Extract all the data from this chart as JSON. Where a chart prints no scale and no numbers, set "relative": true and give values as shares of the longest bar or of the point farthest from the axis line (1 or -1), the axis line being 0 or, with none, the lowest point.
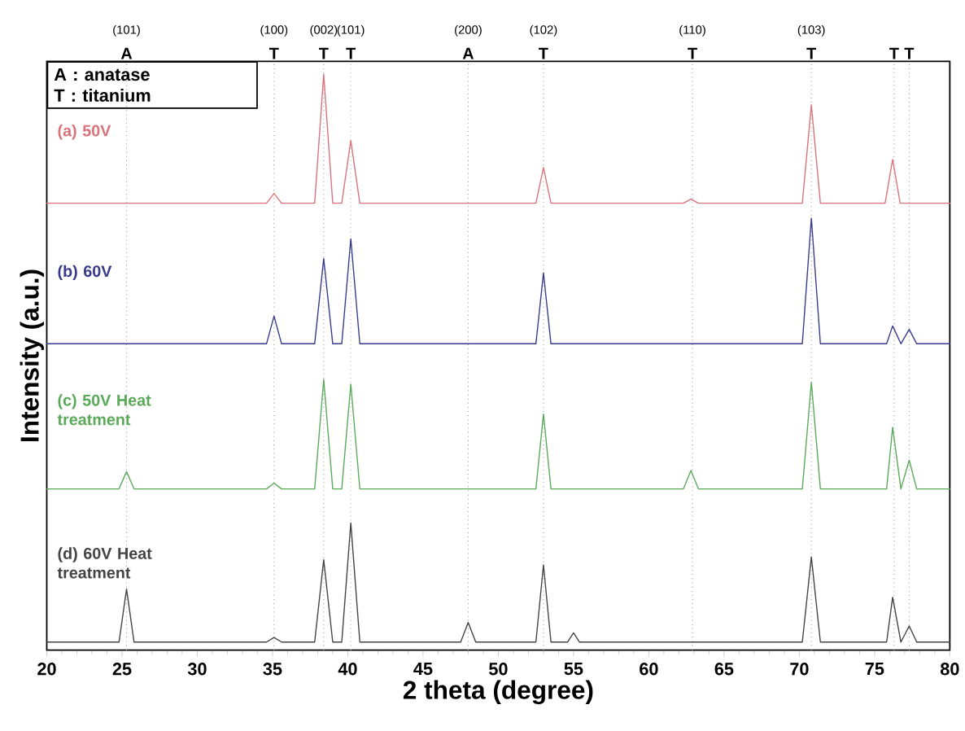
{
  "chart_data": {
    "type": "line",
    "relative": true,
    "xlabel": "2 theta (degree)",
    "ylabel": "Intensity (a.u.)",
    "xlim": [
      20,
      80
    ],
    "xticks": [
      20,
      25,
      30,
      35,
      40,
      45,
      50,
      55,
      60,
      65,
      70,
      75,
      80
    ],
    "line_style": "solid",
    "marker": "none",
    "grid": false,
    "legend": false,
    "series": [
      {
        "name": "(a) 50V",
        "color": "#d9737a",
        "x": [
          20,
          34.6,
          35.1,
          35.6,
          37.8,
          38.4,
          39.0,
          39.6,
          40.2,
          40.8,
          52.5,
          53.0,
          53.5,
          62.3,
          62.8,
          63.3,
          70.2,
          70.8,
          71.4,
          75.7,
          76.2,
          76.7,
          80
        ],
        "values": [
          0.776,
          0.776,
          0.793,
          0.776,
          0.776,
          1.0,
          0.776,
          0.776,
          0.885,
          0.776,
          0.776,
          0.838,
          0.776,
          0.776,
          0.783,
          0.776,
          0.776,
          0.947,
          0.776,
          0.776,
          0.852,
          0.776,
          0.776
        ]
      },
      {
        "name": "(b) 60V",
        "color": "#3a3a8c",
        "x": [
          20,
          34.6,
          35.1,
          35.6,
          37.8,
          38.4,
          39.0,
          39.6,
          40.2,
          40.8,
          52.5,
          53.0,
          53.5,
          70.2,
          70.8,
          71.4,
          75.8,
          76.2,
          76.75,
          77.3,
          77.8,
          80
        ],
        "values": [
          0.532,
          0.532,
          0.58,
          0.532,
          0.532,
          0.68,
          0.532,
          0.532,
          0.714,
          0.532,
          0.532,
          0.655,
          0.532,
          0.532,
          0.75,
          0.532,
          0.532,
          0.563,
          0.532,
          0.557,
          0.532,
          0.532
        ]
      },
      {
        "name": "(c) 50V Heat treatment",
        "color": "#5aaa5a",
        "x": [
          20,
          24.8,
          25.3,
          25.8,
          34.6,
          35.1,
          35.6,
          37.8,
          38.4,
          39.0,
          39.6,
          40.2,
          40.8,
          52.5,
          53.0,
          53.5,
          62.3,
          62.8,
          63.3,
          70.2,
          70.8,
          71.4,
          75.8,
          76.2,
          76.75,
          77.3,
          77.8,
          80
        ],
        "values": [
          0.28,
          0.28,
          0.31,
          0.28,
          0.28,
          0.29,
          0.28,
          0.28,
          0.47,
          0.28,
          0.28,
          0.462,
          0.28,
          0.28,
          0.41,
          0.28,
          0.28,
          0.312,
          0.28,
          0.28,
          0.465,
          0.28,
          0.28,
          0.387,
          0.28,
          0.33,
          0.28,
          0.28
        ]
      },
      {
        "name": "(d) 60V Heat treatment",
        "color": "#444444",
        "x": [
          20,
          24.8,
          25.3,
          25.8,
          34.6,
          35.1,
          35.6,
          37.8,
          38.4,
          39.0,
          39.6,
          40.2,
          40.8,
          47.5,
          48.0,
          48.5,
          52.5,
          53.0,
          53.5,
          54.6,
          55.0,
          55.4,
          70.2,
          70.8,
          71.4,
          75.8,
          76.2,
          76.75,
          77.3,
          77.8,
          80
        ],
        "values": [
          0.014,
          0.014,
          0.106,
          0.014,
          0.014,
          0.022,
          0.014,
          0.014,
          0.157,
          0.014,
          0.014,
          0.221,
          0.014,
          0.014,
          0.048,
          0.014,
          0.014,
          0.148,
          0.014,
          0.014,
          0.03,
          0.014,
          0.014,
          0.162,
          0.014,
          0.014,
          0.092,
          0.014,
          0.042,
          0.014,
          0.014
        ]
      }
    ],
    "ref_lines": [
      {
        "axis": "x",
        "value": 25.3,
        "label": "A",
        "color": "#aaaaaa",
        "line_style": "dotted"
      },
      {
        "axis": "x",
        "value": 35.1,
        "label": "T",
        "color": "#aaaaaa",
        "line_style": "dotted"
      },
      {
        "axis": "x",
        "value": 38.4,
        "label": "T",
        "color": "#aaaaaa",
        "line_style": "dotted"
      },
      {
        "axis": "x",
        "value": 40.2,
        "label": "T",
        "color": "#c4c4c4",
        "line_style": "dotted"
      },
      {
        "axis": "x",
        "value": 48.0,
        "label": "A",
        "color": "#aaaaaa",
        "line_style": "dotted"
      },
      {
        "axis": "x",
        "value": 53.0,
        "label": "T",
        "color": "#aaaaaa",
        "line_style": "dotted"
      },
      {
        "axis": "x",
        "value": 62.9,
        "label": "T",
        "color": "#aaaaaa",
        "line_style": "dotted"
      },
      {
        "axis": "x",
        "value": 70.8,
        "label": "T",
        "color": "#aaaaaa",
        "line_style": "dotted"
      },
      {
        "axis": "x",
        "value": 76.3,
        "label": "T",
        "color": "#aaaaaa",
        "line_style": "dotted"
      },
      {
        "axis": "x",
        "value": 77.3,
        "label": "T",
        "color": "#aaaaaa",
        "line_style": "dotted"
      }
    ],
    "annotations": [
      "A : anatase",
      "T : titanium",
      "(101)",
      "(100)",
      "(002)",
      "(101)",
      "(200)",
      "(102)",
      "(110)",
      "(103)"
    ]
  }
}
